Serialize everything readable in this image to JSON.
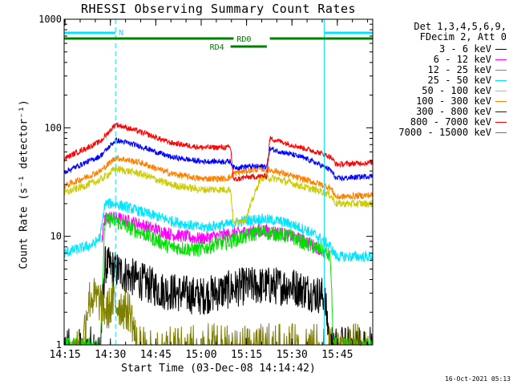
{
  "chart_data": {
    "type": "line",
    "title": "RHESSI Observing Summary Count Rates",
    "ylabel": "Count Rate (s⁻¹ detector⁻¹)",
    "xlabel": "Start Time (03-Dec-08 14:14:42)",
    "y_scale": "log",
    "ylim": [
      1,
      1000
    ],
    "xlim_minutes": [
      0,
      102
    ],
    "y_ticks": [
      1,
      10,
      100,
      1000
    ],
    "y_tick_labels": [
      "1",
      "10",
      "100",
      "1000"
    ],
    "x_tick_labels": [
      "14:15",
      "14:30",
      "14:45",
      "15:00",
      "15:15",
      "15:30",
      "15:45"
    ],
    "x_tick_minutes": [
      0.3,
      15.3,
      30.3,
      45.3,
      60.3,
      75.3,
      90.3
    ],
    "header_lines": [
      "Det 1,3,4,5,6,9,",
      "FDecim 2, Att 0"
    ],
    "flags": [
      {
        "name": "N",
        "label": "N",
        "color": "#00e5ff",
        "row": "top",
        "segments": [
          [
            0,
            17
          ],
          [
            86,
            102
          ]
        ]
      },
      {
        "name": "RD0",
        "label": "RD0",
        "color": "#008000",
        "row": "top",
        "segments": [
          [
            0,
            102
          ]
        ],
        "gap": [
          56,
          68
        ]
      },
      {
        "name": "RD4",
        "label": "RD4",
        "color": "#008000",
        "row": "second",
        "segments": [
          [
            55,
            67
          ]
        ]
      }
    ],
    "marker_lines_minutes": [
      17,
      86,
      102
    ],
    "series": [
      {
        "name": "3 - 6 keV",
        "color": "#000000",
        "noise": 0.18,
        "floor": 1.0,
        "x": [
          0,
          12,
          13.5,
          20,
          32,
          45,
          60,
          75,
          86,
          88,
          102
        ],
        "y": [
          1,
          1,
          5.5,
          4.5,
          3.2,
          2.8,
          3.5,
          3.5,
          2.8,
          1,
          1
        ]
      },
      {
        "name": "6 - 12 keV",
        "color": "#ff00ff",
        "noise": 0.06,
        "floor": 0,
        "x": [
          12.5,
          13.5,
          16,
          25,
          35,
          45,
          50,
          55,
          60,
          65,
          70,
          75,
          80,
          85
        ],
        "y": [
          8.5,
          15,
          15,
          13,
          10.5,
          9.5,
          10,
          10.5,
          11,
          11.5,
          11,
          10,
          9,
          7.5
        ]
      },
      {
        "name": "12 - 25 keV",
        "color": "#00e000",
        "noise": 0.07,
        "floor": 0,
        "x": [
          0,
          12,
          13.5,
          16,
          25,
          35,
          45,
          50,
          55,
          60,
          65,
          70,
          75,
          80,
          85,
          88,
          89,
          102
        ],
        "y": [
          1,
          1,
          14,
          14,
          11,
          8,
          7.5,
          8.5,
          9,
          10,
          11,
          10.5,
          10,
          8.5,
          7.5,
          6.5,
          1,
          1
        ]
      },
      {
        "name": "25 - 50 keV",
        "color": "#00e5ff",
        "noise": 0.05,
        "floor": 0,
        "x": [
          0,
          10,
          12,
          13.5,
          17,
          25,
          35,
          45,
          50,
          55,
          60,
          65,
          70,
          75,
          80,
          85,
          88,
          90,
          102
        ],
        "y": [
          7,
          8.5,
          10,
          20,
          20,
          17,
          14,
          12,
          12.5,
          13,
          14,
          14.5,
          14,
          13,
          11.5,
          9.5,
          8,
          6.5,
          6.5
        ]
      },
      {
        "name": "50 - 100 keV",
        "color": "#cccc00",
        "noise": 0.035,
        "floor": 0,
        "x": [
          0,
          12,
          17,
          25,
          35,
          45,
          50,
          53,
          55,
          56,
          58,
          60,
          65,
          70,
          75,
          80,
          85,
          88,
          90,
          102
        ],
        "y": [
          25,
          33,
          42,
          38,
          30,
          27,
          27,
          27,
          27,
          13,
          14,
          14.5,
          35,
          34,
          31,
          28,
          26,
          24,
          20,
          20
        ]
      },
      {
        "name": "100 - 300 keV",
        "color": "#ff8000",
        "noise": 0.03,
        "floor": 0,
        "x": [
          0,
          12,
          17,
          25,
          35,
          45,
          50,
          53,
          55,
          56,
          60,
          65,
          70,
          75,
          80,
          85,
          88,
          90,
          102
        ],
        "y": [
          29,
          40,
          53,
          48,
          38,
          34,
          34,
          34,
          35,
          38,
          40,
          42,
          40,
          36,
          33,
          30,
          28,
          23,
          24
        ]
      },
      {
        "name": "300 - 800 keV",
        "color": "#0000ff",
        "noise": 0.025,
        "floor": 0,
        "x": [
          0,
          12,
          17,
          25,
          35,
          45,
          50,
          53,
          55,
          56,
          60,
          67,
          68,
          75,
          80,
          85,
          88,
          90,
          102
        ],
        "y": [
          39,
          55,
          77,
          68,
          54,
          49,
          49,
          49,
          49,
          43,
          44,
          44,
          64,
          57,
          52,
          45,
          41,
          34,
          36
        ]
      },
      {
        "name": "800 - 7000 keV",
        "color": "#ff0000",
        "noise": 0.025,
        "floor": 0,
        "x": [
          0,
          12,
          17,
          25,
          35,
          45,
          50,
          53,
          55,
          56,
          60,
          67,
          68,
          75,
          80,
          85,
          88,
          90,
          102
        ],
        "y": [
          52,
          75,
          108,
          92,
          73,
          66,
          66,
          66,
          66,
          33,
          35,
          36,
          80,
          70,
          64,
          58,
          54,
          46,
          48
        ]
      },
      {
        "name": "7000 - 15000 keV",
        "color": "#808000",
        "noise": 0.2,
        "floor": 1.0,
        "x": [
          0,
          6,
          8,
          9,
          12,
          14,
          16,
          22,
          24,
          102
        ],
        "y": [
          1,
          1,
          2.5,
          2.8,
          2.5,
          2,
          2.5,
          2,
          1,
          1
        ]
      }
    ]
  },
  "stamp": "16-Oct-2021 05:13"
}
